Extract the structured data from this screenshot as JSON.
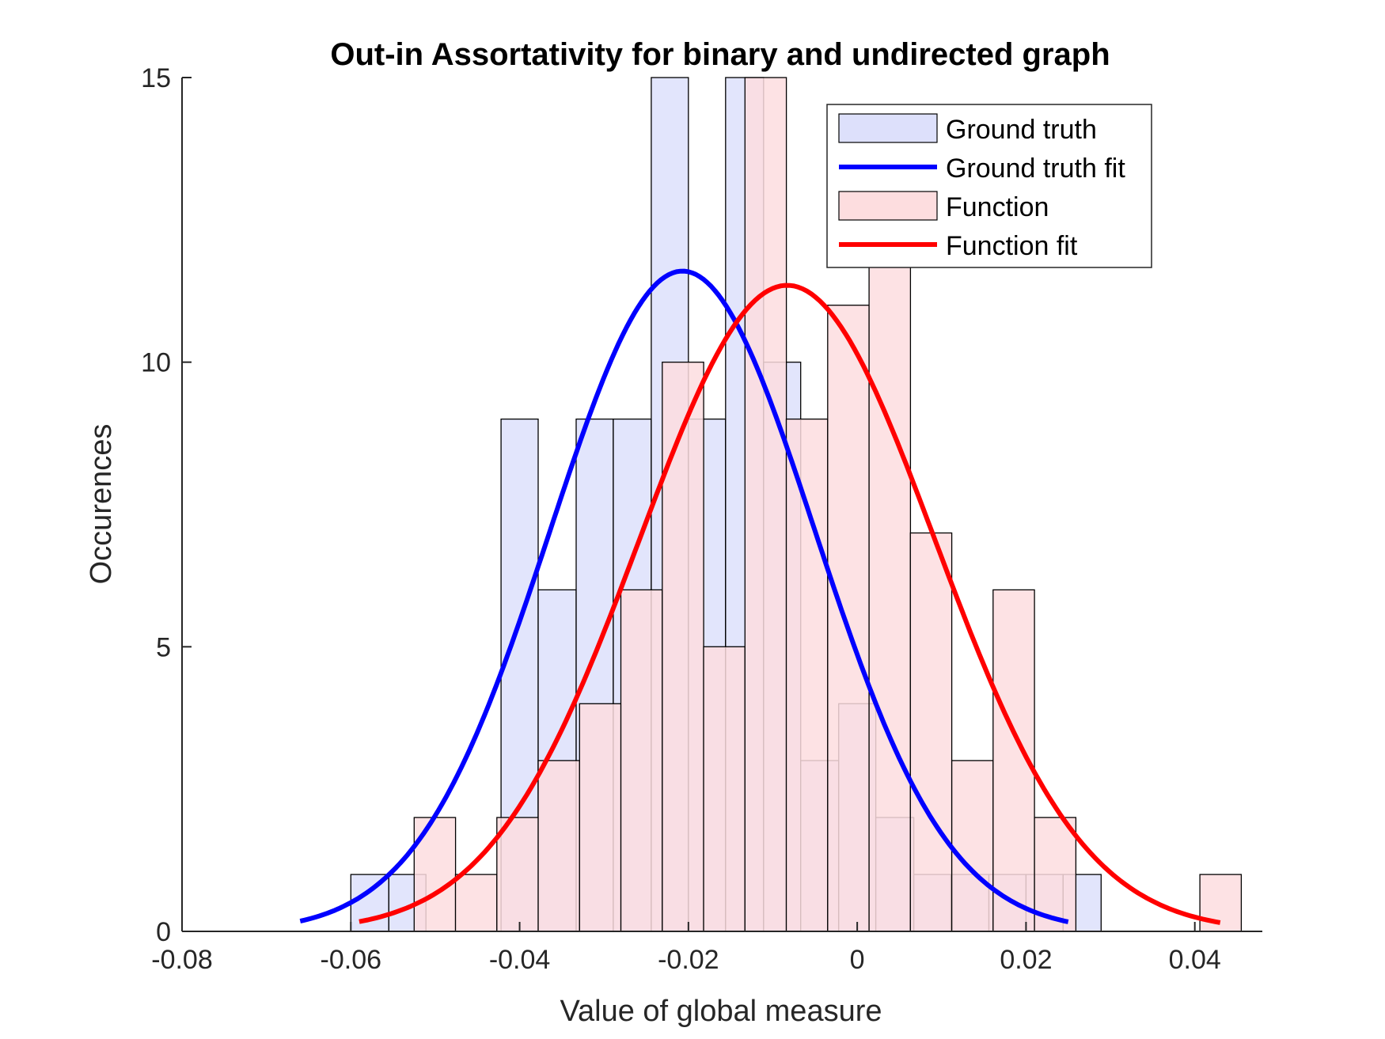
{
  "chart_data": {
    "type": "bar",
    "title": "Out-in Assortativity for binary and undirected graph",
    "xlabel": "Value of global measure",
    "ylabel": "Occurences",
    "xlim": [
      -0.08,
      0.048
    ],
    "ylim": [
      0,
      15
    ],
    "xticks": [
      -0.08,
      -0.06,
      -0.04,
      -0.02,
      0,
      0.02,
      0.04
    ],
    "xtick_labels": [
      "-0.08",
      "-0.06",
      "-0.04",
      "-0.02",
      "0",
      "0.02",
      "0.04"
    ],
    "yticks": [
      0,
      5,
      10,
      15
    ],
    "ytick_labels": [
      "0",
      "5",
      "10",
      "15"
    ],
    "legend_position": "top-right",
    "series": [
      {
        "name": "Ground truth",
        "kind": "histogram",
        "color": "#dde0fb",
        "bins": [
          {
            "x0": -0.06,
            "x1": -0.0555,
            "count": 1
          },
          {
            "x0": -0.0555,
            "x1": -0.0511,
            "count": 1
          },
          {
            "x0": -0.0422,
            "x1": -0.0378,
            "count": 9
          },
          {
            "x0": -0.0378,
            "x1": -0.0333,
            "count": 6
          },
          {
            "x0": -0.0333,
            "x1": -0.0289,
            "count": 9
          },
          {
            "x0": -0.0289,
            "x1": -0.0244,
            "count": 9
          },
          {
            "x0": -0.0244,
            "x1": -0.02,
            "count": 15
          },
          {
            "x0": -0.02,
            "x1": -0.0156,
            "count": 9
          },
          {
            "x0": -0.0156,
            "x1": -0.0111,
            "count": 15
          },
          {
            "x0": -0.0111,
            "x1": -0.0067,
            "count": 10
          },
          {
            "x0": -0.0067,
            "x1": -0.0022,
            "count": 3
          },
          {
            "x0": -0.0022,
            "x1": 0.0022,
            "count": 4
          },
          {
            "x0": 0.0022,
            "x1": 0.0067,
            "count": 2
          },
          {
            "x0": 0.0067,
            "x1": 0.0111,
            "count": 1
          },
          {
            "x0": 0.0111,
            "x1": 0.0156,
            "count": 1
          },
          {
            "x0": 0.0156,
            "x1": 0.02,
            "count": 1
          },
          {
            "x0": 0.02,
            "x1": 0.0244,
            "count": 1
          },
          {
            "x0": 0.0244,
            "x1": 0.0289,
            "count": 1
          }
        ]
      },
      {
        "name": "Ground truth fit",
        "kind": "normal-fit",
        "color": "#0000ff",
        "mu": -0.0207,
        "sigma": 0.0157,
        "peak": 11.6,
        "x_range": [
          -0.066,
          0.025
        ]
      },
      {
        "name": "Function",
        "kind": "histogram",
        "color": "#fddddf",
        "bins": [
          {
            "x0": -0.0525,
            "x1": -0.0476,
            "count": 2
          },
          {
            "x0": -0.0476,
            "x1": -0.0427,
            "count": 1
          },
          {
            "x0": -0.0427,
            "x1": -0.0378,
            "count": 2
          },
          {
            "x0": -0.0378,
            "x1": -0.0329,
            "count": 3
          },
          {
            "x0": -0.0329,
            "x1": -0.028,
            "count": 4
          },
          {
            "x0": -0.028,
            "x1": -0.0231,
            "count": 6
          },
          {
            "x0": -0.0231,
            "x1": -0.0182,
            "count": 10
          },
          {
            "x0": -0.0182,
            "x1": -0.0133,
            "count": 5
          },
          {
            "x0": -0.0133,
            "x1": -0.0084,
            "count": 15
          },
          {
            "x0": -0.0084,
            "x1": -0.0035,
            "count": 9
          },
          {
            "x0": -0.0035,
            "x1": 0.0014,
            "count": 11
          },
          {
            "x0": 0.0014,
            "x1": 0.0063,
            "count": 12
          },
          {
            "x0": 0.0063,
            "x1": 0.0112,
            "count": 7
          },
          {
            "x0": 0.0112,
            "x1": 0.0161,
            "count": 3
          },
          {
            "x0": 0.0161,
            "x1": 0.021,
            "count": 6
          },
          {
            "x0": 0.021,
            "x1": 0.0259,
            "count": 2
          },
          {
            "x0": 0.0259,
            "x1": 0.0308,
            "count": 0
          },
          {
            "x0": 0.0308,
            "x1": 0.0357,
            "count": 0
          },
          {
            "x0": 0.0357,
            "x1": 0.0406,
            "count": 0
          },
          {
            "x0": 0.0406,
            "x1": 0.0455,
            "count": 1
          }
        ]
      },
      {
        "name": "Function fit",
        "kind": "normal-fit",
        "color": "#ff0000",
        "mu": -0.0083,
        "sigma": 0.0175,
        "peak": 11.35,
        "x_range": [
          -0.059,
          0.043
        ]
      }
    ]
  }
}
